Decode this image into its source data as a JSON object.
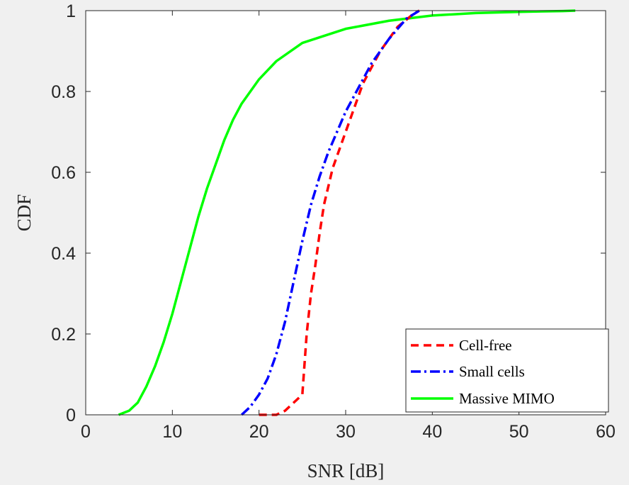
{
  "chart_data": {
    "type": "line",
    "title": "",
    "xlabel": "SNR [dB]",
    "ylabel": "CDF",
    "xlim": [
      0,
      60
    ],
    "ylim": [
      0,
      1
    ],
    "x_ticks": [
      0,
      10,
      20,
      30,
      40,
      50,
      60
    ],
    "y_ticks": [
      0,
      0.2,
      0.4,
      0.6,
      0.8,
      1
    ],
    "x_tick_labels": [
      "0",
      "10",
      "20",
      "30",
      "40",
      "50",
      "60"
    ],
    "y_tick_labels": [
      "0",
      "0.2",
      "0.4",
      "0.6",
      "0.8",
      "1"
    ],
    "grid": false,
    "legend_position": "bottom-right",
    "series": [
      {
        "name": "Cell-free",
        "color": "#ff0000",
        "style": "dashed",
        "points": [
          [
            20,
            0
          ],
          [
            22,
            0
          ],
          [
            23,
            0.01
          ],
          [
            24,
            0.03
          ],
          [
            25,
            0.05
          ],
          [
            25.5,
            0.2
          ],
          [
            26,
            0.3
          ],
          [
            26.5,
            0.37
          ],
          [
            27,
            0.45
          ],
          [
            27.5,
            0.52
          ],
          [
            28.5,
            0.61
          ],
          [
            30,
            0.7
          ],
          [
            31,
            0.76
          ],
          [
            32,
            0.82
          ],
          [
            34,
            0.9
          ],
          [
            36,
            0.96
          ],
          [
            38,
            0.995
          ],
          [
            38.5,
            1
          ]
        ]
      },
      {
        "name": "Small cells",
        "color": "#0000ff",
        "style": "dashdot",
        "points": [
          [
            18,
            0
          ],
          [
            19,
            0.02
          ],
          [
            20,
            0.05
          ],
          [
            21,
            0.09
          ],
          [
            22,
            0.15
          ],
          [
            23,
            0.23
          ],
          [
            24,
            0.33
          ],
          [
            25,
            0.43
          ],
          [
            26,
            0.52
          ],
          [
            27,
            0.59
          ],
          [
            28,
            0.65
          ],
          [
            29,
            0.7
          ],
          [
            30,
            0.75
          ],
          [
            31,
            0.79
          ],
          [
            32,
            0.83
          ],
          [
            33,
            0.87
          ],
          [
            34,
            0.9
          ],
          [
            35,
            0.93
          ],
          [
            36,
            0.955
          ],
          [
            37,
            0.98
          ],
          [
            38.5,
            1
          ]
        ]
      },
      {
        "name": "Massive MIMO",
        "color": "#00ff00",
        "style": "solid",
        "points": [
          [
            3.8,
            0
          ],
          [
            5,
            0.01
          ],
          [
            6,
            0.03
          ],
          [
            7,
            0.07
          ],
          [
            8,
            0.12
          ],
          [
            9,
            0.18
          ],
          [
            10,
            0.25
          ],
          [
            11,
            0.33
          ],
          [
            12,
            0.41
          ],
          [
            13,
            0.49
          ],
          [
            14,
            0.56
          ],
          [
            15,
            0.62
          ],
          [
            16,
            0.68
          ],
          [
            17,
            0.73
          ],
          [
            18,
            0.77
          ],
          [
            20,
            0.83
          ],
          [
            22,
            0.875
          ],
          [
            25,
            0.92
          ],
          [
            30,
            0.955
          ],
          [
            35,
            0.975
          ],
          [
            40,
            0.988
          ],
          [
            45,
            0.994
          ],
          [
            50,
            0.997
          ],
          [
            55,
            0.999
          ],
          [
            56.5,
            1
          ]
        ]
      }
    ]
  }
}
